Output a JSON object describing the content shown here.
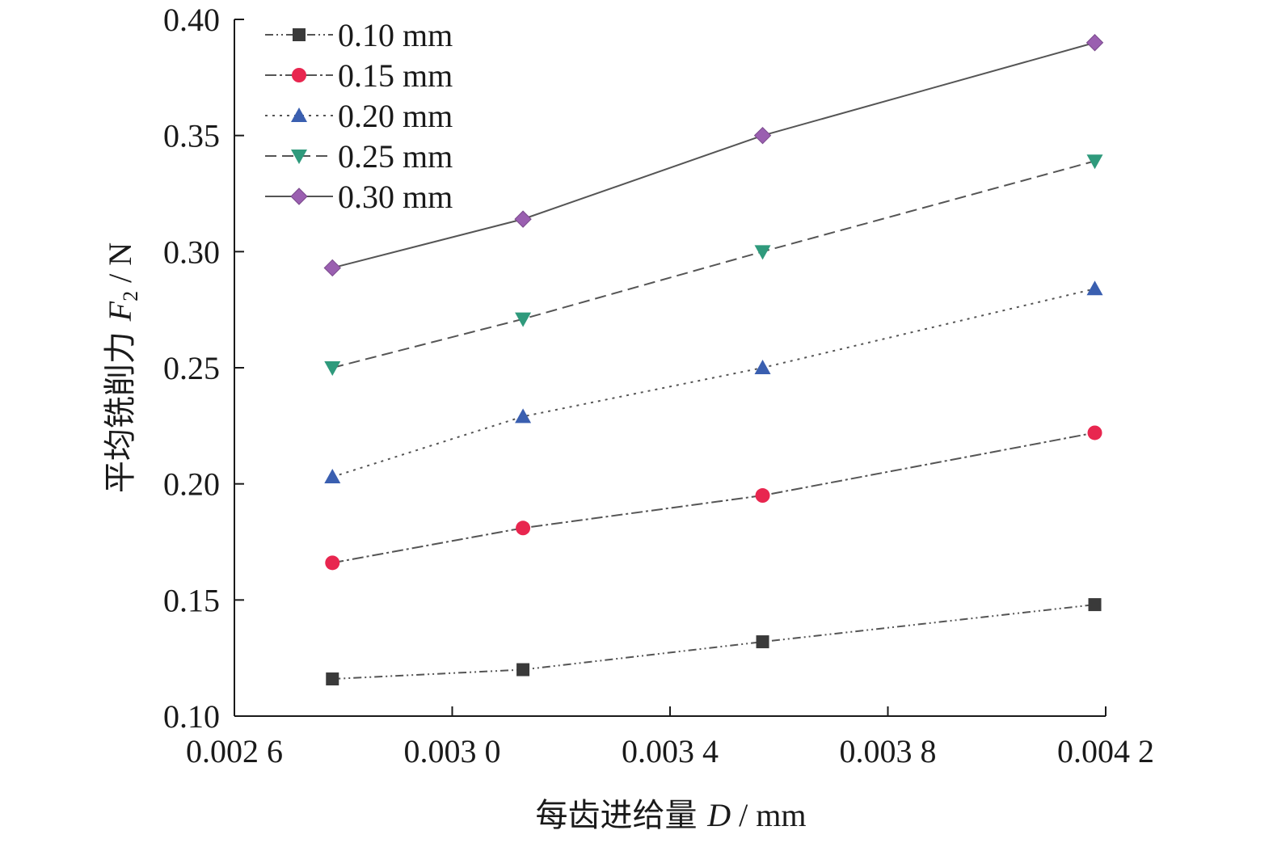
{
  "chart_data": {
    "type": "line",
    "xlabel": {
      "prefix": "每齿进给量 ",
      "symbol": "D",
      "unit": " / mm"
    },
    "ylabel": {
      "prefix": "平均铣削力 ",
      "symbol": "F",
      "subscript": "2",
      "unit": " / N"
    },
    "x": [
      0.00278,
      0.00313,
      0.00357,
      0.00418
    ],
    "xlim": [
      0.0026,
      0.0042
    ],
    "ylim": [
      0.1,
      0.4
    ],
    "x_ticks": [
      0.0026,
      0.003,
      0.0034,
      0.0038,
      0.0042
    ],
    "x_tick_labels": [
      "0.002 6",
      "0.003 0",
      "0.003 4",
      "0.003 8",
      "0.004 2"
    ],
    "y_ticks": [
      0.1,
      0.15,
      0.2,
      0.25,
      0.3,
      0.35,
      0.4
    ],
    "y_tick_labels": [
      "0.10",
      "0.15",
      "0.20",
      "0.25",
      "0.30",
      "0.35",
      "0.40"
    ],
    "grid": false,
    "legend_position": "top-left",
    "series": [
      {
        "name": "0.10 mm",
        "values": [
          0.116,
          0.12,
          0.132,
          0.148
        ],
        "color": "#3a3a3a",
        "marker": "square",
        "line_style": "dash-dot-dot"
      },
      {
        "name": "0.15 mm",
        "values": [
          0.166,
          0.181,
          0.195,
          0.222
        ],
        "color": "#e8264f",
        "marker": "circle",
        "line_style": "dash-dot"
      },
      {
        "name": "0.20 mm",
        "values": [
          0.203,
          0.229,
          0.25,
          0.284
        ],
        "color": "#3a5fb0",
        "marker": "triangle-up",
        "line_style": "dotted"
      },
      {
        "name": "0.25 mm",
        "values": [
          0.25,
          0.271,
          0.3,
          0.339
        ],
        "color": "#2f9a7c",
        "marker": "triangle-down",
        "line_style": "dashed"
      },
      {
        "name": "0.30 mm",
        "values": [
          0.293,
          0.314,
          0.35,
          0.39
        ],
        "color": "#9a5fb0",
        "marker": "diamond",
        "line_style": "solid"
      }
    ],
    "line_color": "#555555"
  }
}
